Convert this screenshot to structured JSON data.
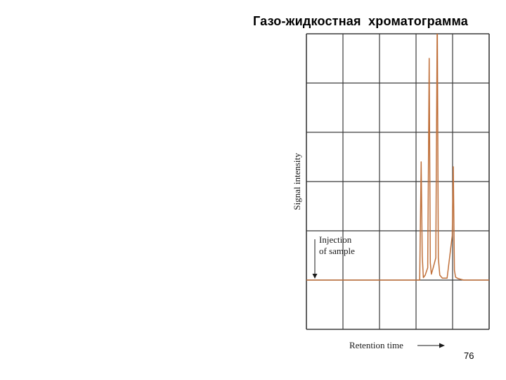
{
  "slide": {
    "title": "Газо-жидкостная  хроматограмма",
    "page_number": "76"
  },
  "colors": {
    "grid": "#3a3a3a",
    "trace": "#c0703a",
    "text": "#1a1a1a"
  },
  "chart_data": {
    "type": "line",
    "title": "",
    "xlabel": "Retention time",
    "ylabel": "Signal intensity",
    "grid": true,
    "xlim": [
      0,
      5
    ],
    "ylim": [
      0,
      6
    ],
    "ticks_labeled": false,
    "annotations": [
      {
        "text_lines": [
          "Injection",
          "of sample"
        ],
        "x": 0,
        "y": 1
      }
    ],
    "series": [
      {
        "values_x": [
          0,
          3.1,
          3.14,
          3.17,
          3.2,
          3.25,
          3.32,
          3.36,
          3.39,
          3.42,
          3.47,
          3.54,
          3.58,
          3.61,
          3.65,
          3.72,
          3.85,
          3.99,
          4.02,
          4.05,
          4.08,
          4.15,
          4.3,
          5.0
        ],
        "values_y": [
          1,
          1,
          3.4,
          1.5,
          1.05,
          1.1,
          1.25,
          5.5,
          1.35,
          1.12,
          1.25,
          1.45,
          6.5,
          1.45,
          1.1,
          1.04,
          1.04,
          1.9,
          3.3,
          1.2,
          1.06,
          1.03,
          1.0,
          1.0
        ]
      }
    ]
  }
}
